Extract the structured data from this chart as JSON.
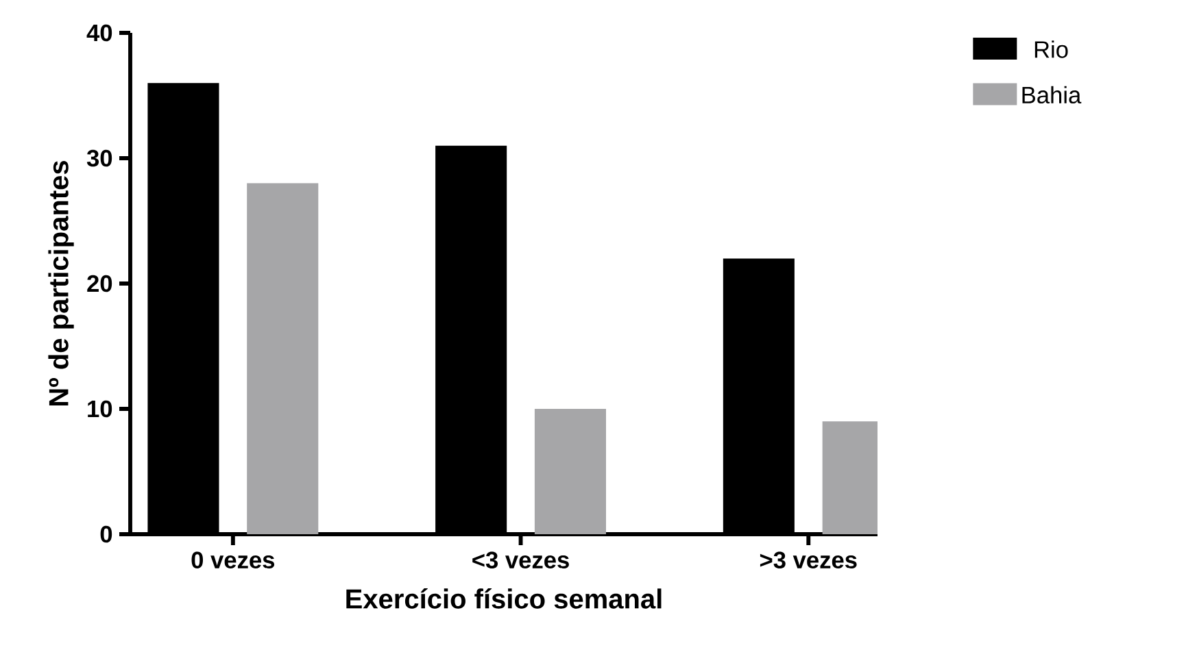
{
  "chart_data": {
    "type": "bar",
    "categories": [
      "0 vezes",
      "<3 vezes",
      ">3 vezes"
    ],
    "series": [
      {
        "name": "Rio",
        "color": "#000000",
        "values": [
          36,
          31,
          22
        ]
      },
      {
        "name": "Bahia",
        "color": "#a6a6a8",
        "values": [
          28,
          10,
          9
        ]
      }
    ],
    "xlabel": "Exercício físico semanal",
    "ylabel": "Nº de participantes",
    "ylim": [
      0,
      40
    ],
    "yticks": [
      0,
      10,
      20,
      30,
      40
    ],
    "legend": "top right"
  }
}
